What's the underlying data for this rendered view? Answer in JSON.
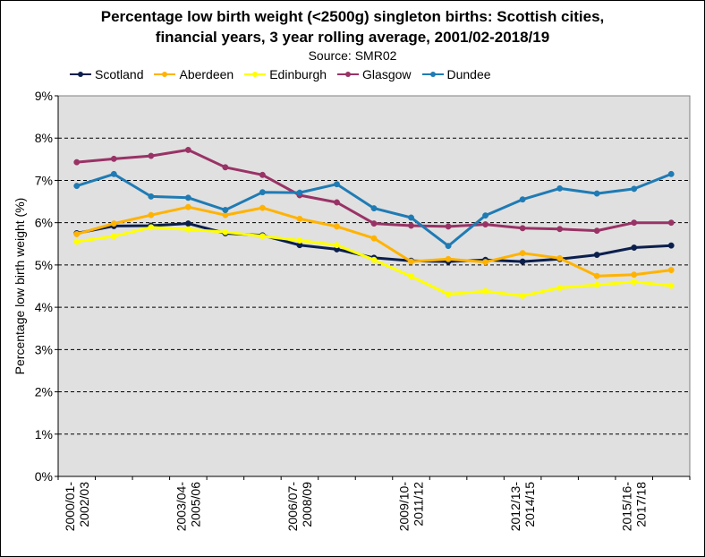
{
  "chart_data": {
    "type": "line",
    "title_line1": "Percentage low birth weight (<2500g) singleton births: Scottish cities,",
    "title_line2": "financial years, 3 year rolling average, 2001/02-2018/19",
    "subtitle": "Source: SMR02",
    "ylabel": "Percentage low birth weight (%)",
    "ylim": [
      0,
      9
    ],
    "yticks": [
      "0%",
      "1%",
      "2%",
      "3%",
      "4%",
      "5%",
      "6%",
      "7%",
      "8%",
      "9%"
    ],
    "x_tick_labels": [
      {
        "index": 0,
        "line1": "2000/01-",
        "line2": "2002/03"
      },
      {
        "index": 3,
        "line1": "2003/04-",
        "line2": "2005/06"
      },
      {
        "index": 6,
        "line1": "2006/07-",
        "line2": "2008/09"
      },
      {
        "index": 9,
        "line1": "2009/10-",
        "line2": "2011/12"
      },
      {
        "index": 12,
        "line1": "2012/13-",
        "line2": "2014/15"
      },
      {
        "index": 15,
        "line1": "2015/16-",
        "line2": "2017/18"
      }
    ],
    "num_points": 17,
    "legend_position": "top",
    "grid": "dashed-horizontal",
    "plot_background": "#e0e0e0",
    "series": [
      {
        "name": "Scotland",
        "color": "#0b1f4d",
        "values": [
          5.75,
          5.92,
          5.93,
          5.98,
          5.75,
          5.7,
          5.47,
          5.37,
          5.17,
          5.1,
          5.08,
          5.12,
          5.08,
          5.14,
          5.24,
          5.41,
          5.46
        ]
      },
      {
        "name": "Aberdeen",
        "color": "#ffb300",
        "values": [
          5.73,
          5.98,
          6.18,
          6.37,
          6.18,
          6.35,
          6.09,
          5.91,
          5.63,
          5.08,
          5.14,
          5.07,
          5.28,
          5.16,
          4.74,
          4.77,
          4.88
        ]
      },
      {
        "name": "Edinburgh",
        "color": "#ffff00",
        "values": [
          5.55,
          5.68,
          5.89,
          5.84,
          5.78,
          5.68,
          5.58,
          5.47,
          5.12,
          4.73,
          4.31,
          4.38,
          4.27,
          4.46,
          4.53,
          4.6,
          4.51
        ]
      },
      {
        "name": "Glasgow",
        "color": "#993366",
        "values": [
          7.43,
          7.51,
          7.58,
          7.72,
          7.31,
          7.13,
          6.65,
          6.48,
          5.98,
          5.93,
          5.91,
          5.96,
          5.87,
          5.85,
          5.81,
          6.0,
          6.0
        ]
      },
      {
        "name": "Dundee",
        "color": "#1f7bb4",
        "values": [
          6.87,
          7.15,
          6.62,
          6.59,
          6.3,
          6.72,
          6.71,
          6.91,
          6.34,
          6.12,
          5.45,
          6.17,
          6.55,
          6.81,
          6.69,
          6.8,
          7.15
        ]
      }
    ]
  }
}
